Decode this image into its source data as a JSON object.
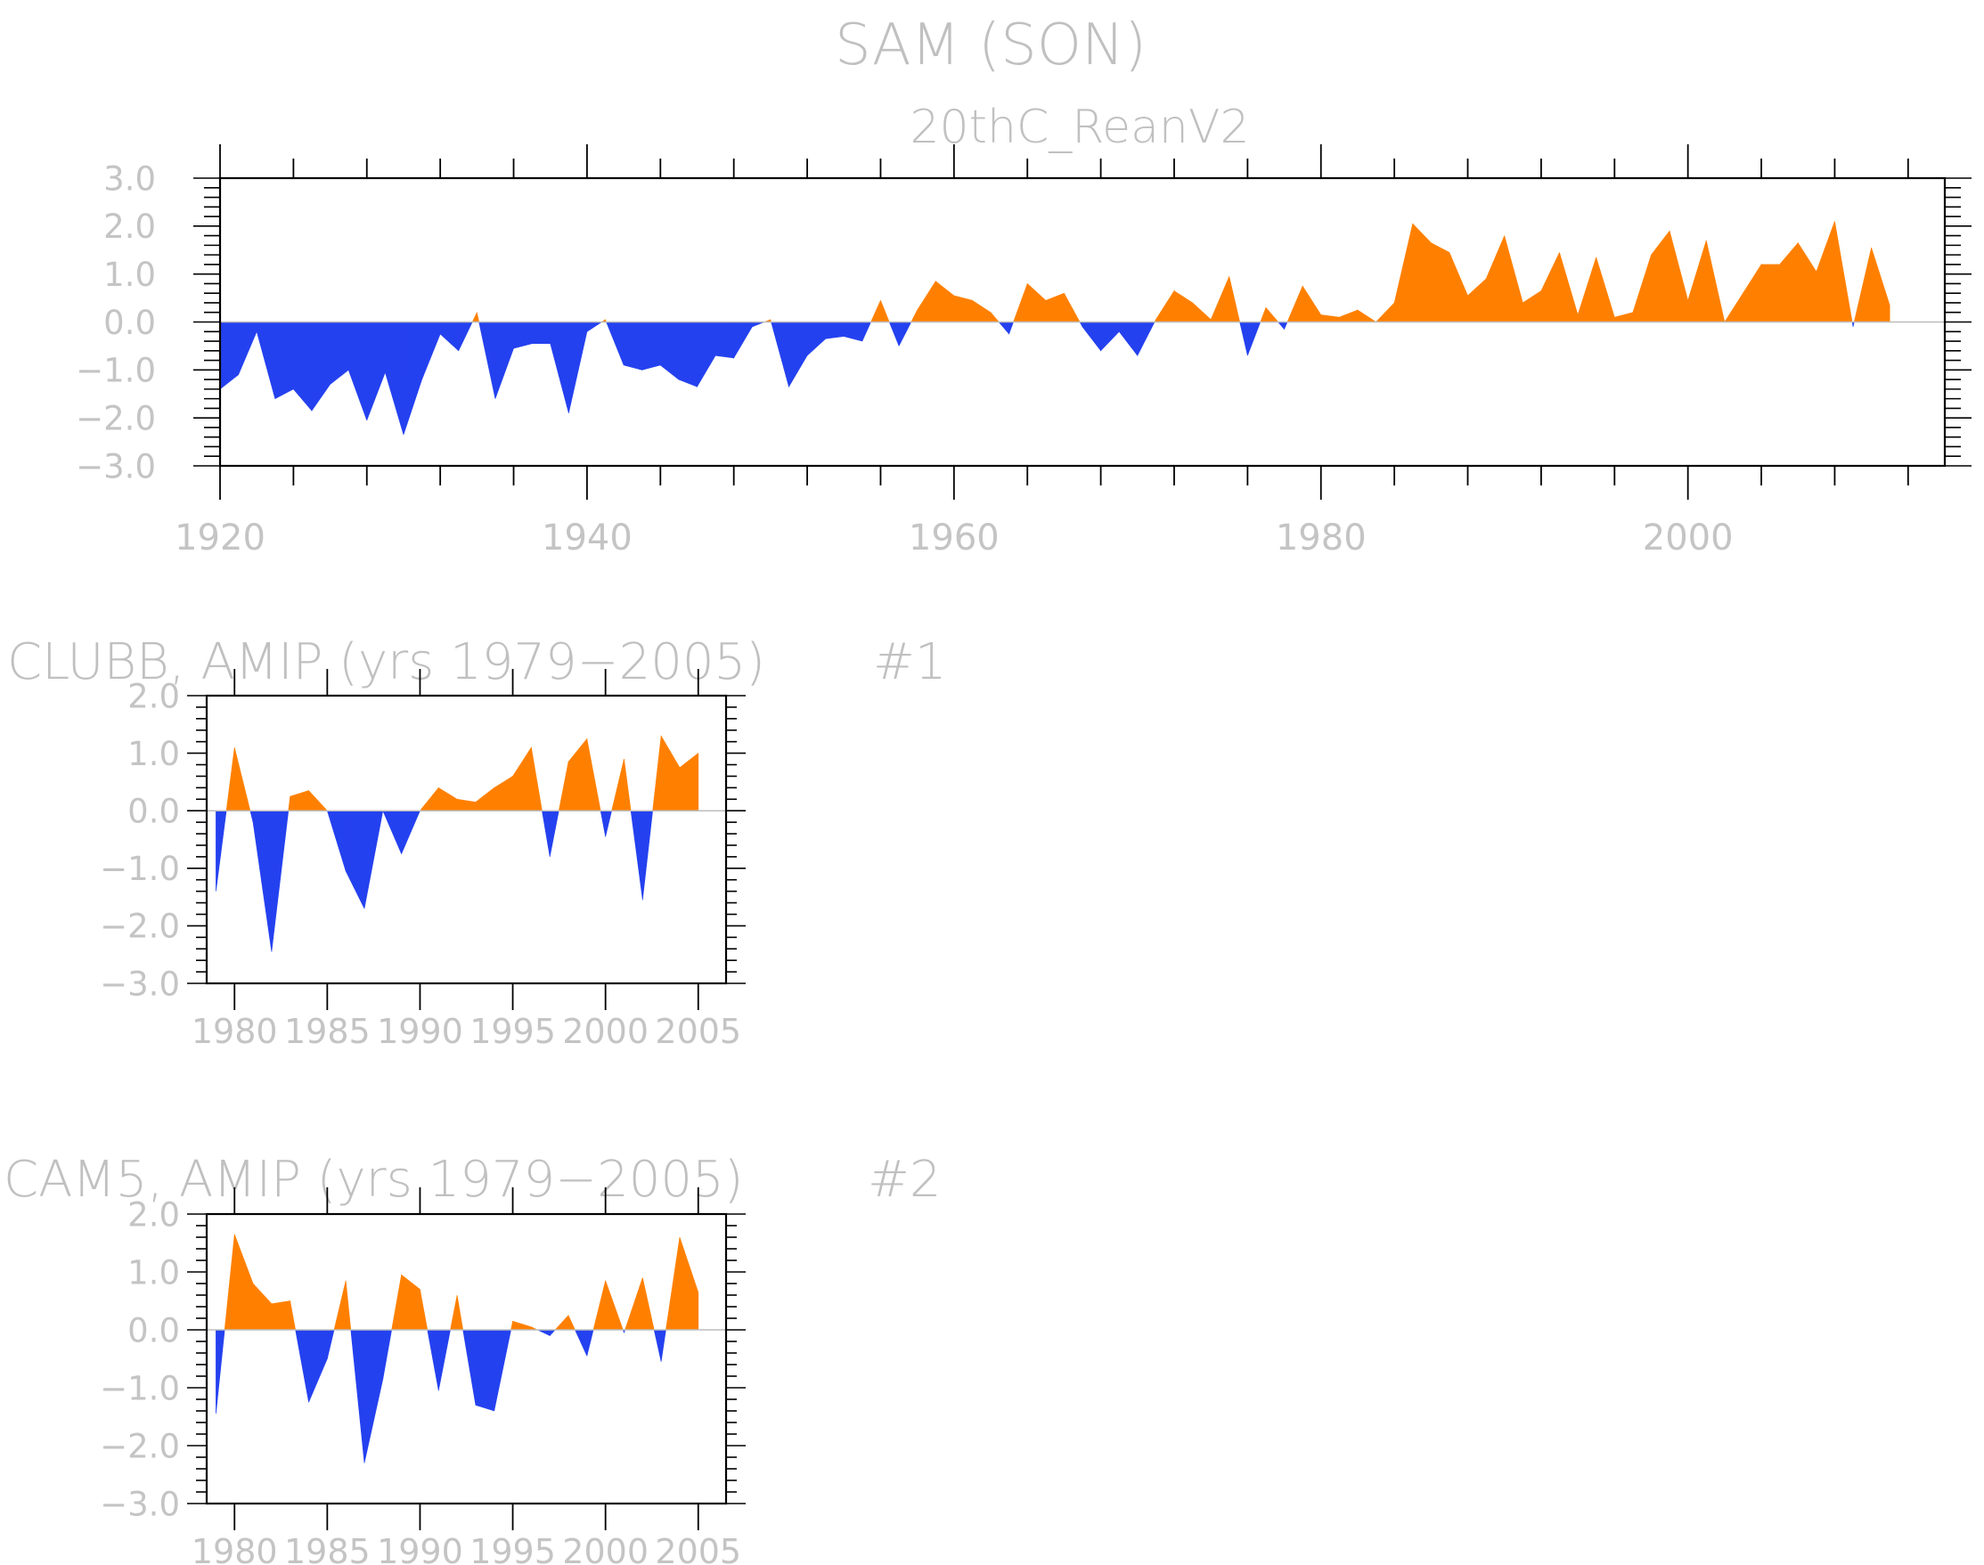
{
  "figure": {
    "title": "SAM (SON)"
  },
  "colors": {
    "positive": "#ff8000",
    "negative": "#2441ef",
    "frame": "#000000",
    "text": "#c0c0c0"
  },
  "chart_data": [
    {
      "type": "area",
      "subtitle": "20thC_ReanV2",
      "title": "",
      "label_right": "",
      "x_tick_labels": [
        "1920",
        "1940",
        "1960",
        "1980",
        "2000"
      ],
      "x_tick_values": [
        1920,
        1940,
        1960,
        1980,
        2000
      ],
      "y_tick_labels": [
        "3.0",
        "2.0",
        "1.0",
        "0.0",
        "−1.0",
        "−2.0",
        "−3.0"
      ],
      "y_tick_values": [
        3,
        2,
        1,
        0,
        -1,
        -2,
        -3
      ],
      "xlim": [
        1920,
        2014
      ],
      "ylim": [
        -3,
        3
      ],
      "reference_line": 0,
      "x": [
        1920,
        1921,
        1922,
        1923,
        1924,
        1925,
        1926,
        1927,
        1928,
        1929,
        1930,
        1931,
        1932,
        1933,
        1934,
        1935,
        1936,
        1937,
        1938,
        1939,
        1940,
        1941,
        1942,
        1943,
        1944,
        1945,
        1946,
        1947,
        1948,
        1949,
        1950,
        1951,
        1952,
        1953,
        1954,
        1955,
        1956,
        1957,
        1958,
        1959,
        1960,
        1961,
        1962,
        1963,
        1964,
        1965,
        1966,
        1967,
        1968,
        1969,
        1970,
        1971,
        1972,
        1973,
        1974,
        1975,
        1976,
        1977,
        1978,
        1979,
        1980,
        1981,
        1982,
        1983,
        1984,
        1985,
        1986,
        1987,
        1988,
        1989,
        1990,
        1991,
        1992,
        1993,
        1994,
        1995,
        1996,
        1997,
        1998,
        1999,
        2000,
        2001,
        2002,
        2003,
        2004,
        2005,
        2006,
        2007,
        2008,
        2009,
        2010,
        2011
      ],
      "y": [
        -1.4,
        -1.1,
        -0.2,
        -1.6,
        -1.4,
        -1.85,
        -1.3,
        -1.0,
        -2.05,
        -1.05,
        -2.35,
        -1.2,
        -0.25,
        -0.6,
        0.2,
        -1.6,
        -0.55,
        -0.45,
        -0.45,
        -1.9,
        -0.2,
        0.05,
        -0.9,
        -1.0,
        -0.9,
        -1.2,
        -1.35,
        -0.7,
        -0.75,
        -0.1,
        0.05,
        -1.35,
        -0.7,
        -0.35,
        -0.3,
        -0.4,
        0.45,
        -0.5,
        0.25,
        0.85,
        0.55,
        0.45,
        0.2,
        -0.25,
        0.8,
        0.45,
        0.6,
        -0.1,
        -0.6,
        -0.2,
        -0.7,
        0.05,
        0.65,
        0.4,
        0.05,
        0.95,
        -0.7,
        0.3,
        -0.15,
        0.75,
        0.15,
        0.1,
        0.25,
        0.0,
        0.4,
        2.05,
        1.65,
        1.45,
        0.55,
        0.9,
        1.8,
        0.4,
        0.65,
        1.45,
        0.15,
        1.35,
        0.1,
        0.2,
        1.4,
        1.9,
        0.45,
        1.7,
        0.0,
        0.6,
        1.2,
        1.2,
        1.65,
        1.05,
        2.1,
        -0.1,
        1.55,
        0.35
      ]
    },
    {
      "type": "area",
      "title": "CLUBB, AMIP (yrs 1979−2005)",
      "label_right": "#1",
      "subtitle": "",
      "x_tick_labels": [
        "1980",
        "1985",
        "1990",
        "1995",
        "2000",
        "2005"
      ],
      "x_tick_values": [
        1980,
        1985,
        1990,
        1995,
        2000,
        2005
      ],
      "y_tick_labels": [
        "2.0",
        "1.0",
        "0.0",
        "−1.0",
        "−2.0",
        "−3.0"
      ],
      "y_tick_values": [
        2,
        1,
        0,
        -1,
        -2,
        -3
      ],
      "xlim": [
        1978.5,
        2006.5
      ],
      "ylim": [
        -3,
        2
      ],
      "reference_line": 0,
      "x": [
        1979,
        1980,
        1981,
        1982,
        1983,
        1984,
        1985,
        1986,
        1987,
        1988,
        1989,
        1990,
        1991,
        1992,
        1993,
        1994,
        1995,
        1996,
        1997,
        1998,
        1999,
        2000,
        2001,
        2002,
        2003,
        2004,
        2005
      ],
      "y": [
        -1.4,
        1.1,
        -0.2,
        -2.45,
        0.25,
        0.35,
        0.0,
        -1.05,
        -1.7,
        0.0,
        -0.75,
        0.0,
        0.4,
        0.2,
        0.15,
        0.4,
        0.6,
        1.1,
        -0.8,
        0.85,
        1.25,
        -0.45,
        0.9,
        -1.55,
        1.3,
        0.75,
        1.0
      ]
    },
    {
      "type": "area",
      "title": "CAM5, AMIP (yrs 1979−2005)",
      "label_right": "#2",
      "subtitle": "",
      "x_tick_labels": [
        "1980",
        "1985",
        "1990",
        "1995",
        "2000",
        "2005"
      ],
      "x_tick_values": [
        1980,
        1985,
        1990,
        1995,
        2000,
        2005
      ],
      "y_tick_labels": [
        "2.0",
        "1.0",
        "0.0",
        "−1.0",
        "−2.0",
        "−3.0"
      ],
      "y_tick_values": [
        2,
        1,
        0,
        -1,
        -2,
        -3
      ],
      "xlim": [
        1978.5,
        2006.5
      ],
      "ylim": [
        -3,
        2
      ],
      "reference_line": 0,
      "x": [
        1979,
        1980,
        1981,
        1982,
        1983,
        1984,
        1985,
        1986,
        1987,
        1988,
        1989,
        1990,
        1991,
        1992,
        1993,
        1994,
        1995,
        1996,
        1997,
        1998,
        1999,
        2000,
        2001,
        2002,
        2003,
        2004,
        2005
      ],
      "y": [
        -1.45,
        1.65,
        0.8,
        0.45,
        0.5,
        -1.25,
        -0.5,
        0.85,
        -2.3,
        -0.85,
        0.95,
        0.7,
        -1.05,
        0.6,
        -1.3,
        -1.4,
        0.15,
        0.05,
        -0.1,
        0.25,
        -0.45,
        0.85,
        -0.05,
        0.9,
        -0.55,
        1.6,
        0.65
      ]
    }
  ]
}
